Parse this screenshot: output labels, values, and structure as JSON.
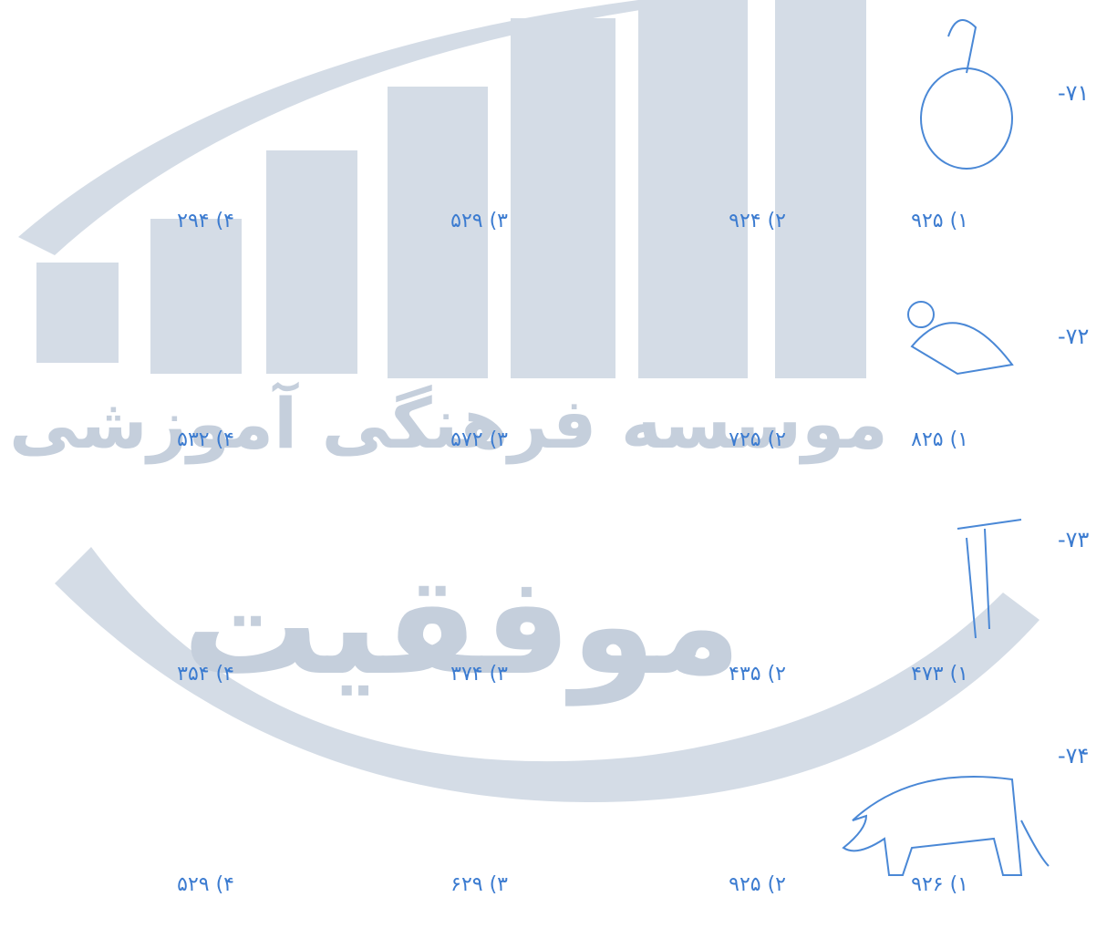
{
  "watermark": {
    "line1": "موسسه فرهنگی آموزشی",
    "line2": "موفقیت"
  },
  "questions": [
    {
      "number": "-۷۱",
      "options": [
        "۱) ۹۲۵",
        "۲) ۹۲۴",
        "۳) ۵۲۹",
        "۴) ۲۹۴"
      ]
    },
    {
      "number": "-۷۲",
      "options": [
        "۱) ۸۲۵",
        "۲) ۷۲۵",
        "۳) ۵۷۲",
        "۴) ۵۳۲"
      ]
    },
    {
      "number": "-۷۳",
      "options": [
        "۱) ۴۷۳",
        "۲) ۴۳۵",
        "۳) ۳۷۴",
        "۴) ۳۵۴"
      ]
    },
    {
      "number": "-۷۴",
      "options": [
        "۱) ۹۲۶",
        "۲) ۹۲۵",
        "۳) ۶۲۹",
        "۴) ۵۲۹"
      ]
    }
  ]
}
